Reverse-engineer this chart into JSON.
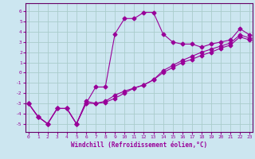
{
  "xlabel": "Windchill (Refroidissement éolien,°C)",
  "x_values": [
    0,
    1,
    2,
    3,
    4,
    5,
    6,
    7,
    8,
    9,
    10,
    11,
    12,
    13,
    14,
    15,
    16,
    17,
    18,
    19,
    20,
    21,
    22,
    23
  ],
  "curve1_y": [
    -3.0,
    -4.3,
    -5.0,
    -3.5,
    -3.5,
    -5.0,
    -3.0,
    -1.4,
    -1.4,
    3.8,
    5.3,
    5.3,
    5.9,
    5.9,
    3.8,
    3.0,
    2.8,
    2.8,
    2.5,
    2.8,
    3.0,
    3.2,
    4.3,
    3.7
  ],
  "curve2_y": [
    -3.0,
    -4.3,
    -5.0,
    -3.5,
    -3.5,
    -5.0,
    -3.0,
    -3.0,
    -2.9,
    -2.5,
    -2.0,
    -1.5,
    -1.2,
    -0.7,
    0.0,
    0.5,
    1.0,
    1.3,
    1.7,
    2.0,
    2.4,
    2.7,
    3.5,
    3.2
  ],
  "curve3_y": [
    -3.0,
    -4.3,
    -5.0,
    -3.5,
    -3.5,
    -5.0,
    -2.8,
    -3.0,
    -2.8,
    -2.2,
    -1.8,
    -1.5,
    -1.2,
    -0.7,
    0.2,
    0.7,
    1.2,
    1.6,
    2.0,
    2.3,
    2.6,
    2.9,
    3.7,
    3.4
  ],
  "color": "#990099",
  "bg_color": "#cce6f0",
  "grid_color": "#aacccc",
  "spine_color": "#660066",
  "ylim": [
    -5.8,
    6.8
  ],
  "xlim": [
    -0.3,
    23.3
  ],
  "yticks": [
    -5,
    -4,
    -3,
    -2,
    -1,
    0,
    1,
    2,
    3,
    4,
    5,
    6
  ],
  "xticks": [
    0,
    1,
    2,
    3,
    4,
    5,
    6,
    7,
    8,
    9,
    10,
    11,
    12,
    13,
    14,
    15,
    16,
    17,
    18,
    19,
    20,
    21,
    22,
    23
  ],
  "marker": "D",
  "markersize": 2.5,
  "linewidth": 0.8,
  "tick_fontsize": 4.5,
  "xlabel_fontsize": 5.5
}
